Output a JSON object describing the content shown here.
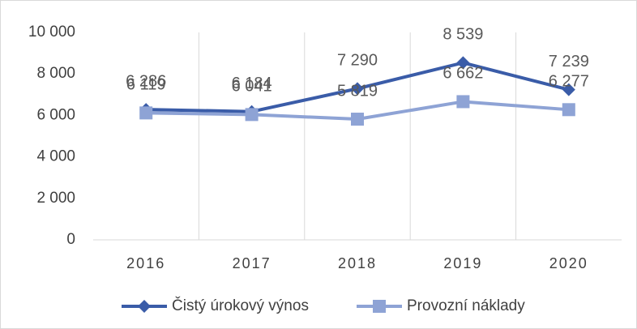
{
  "chart_data": {
    "type": "line",
    "categories": [
      "2016",
      "2017",
      "2018",
      "2019",
      "2020"
    ],
    "series": [
      {
        "name": "Čistý úrokový výnos",
        "color": "#3a5ca8",
        "marker": "diamond",
        "values": [
          6286,
          6184,
          7290,
          8539,
          7239
        ],
        "value_labels": [
          "6 286",
          "6 184",
          "7 290",
          "8 539",
          "7 239"
        ]
      },
      {
        "name": "Provozní náklady",
        "color": "#8ea3d5",
        "marker": "square",
        "values": [
          6119,
          6041,
          5819,
          6662,
          6277
        ],
        "value_labels": [
          "6 119",
          "6 041",
          "5 819",
          "6 662",
          "6 277"
        ]
      }
    ],
    "ylim": [
      0,
      10000
    ],
    "yticks": [
      0,
      {
        "value": 2000,
        "label": "2 000"
      },
      {
        "value": 4000,
        "label": "4 000"
      },
      {
        "value": 6000,
        "label": "6 000"
      },
      {
        "value": 8000,
        "label": "8 000"
      },
      {
        "value": 10000,
        "label": "10 000"
      }
    ],
    "grid": "x",
    "legend": "bottom"
  }
}
